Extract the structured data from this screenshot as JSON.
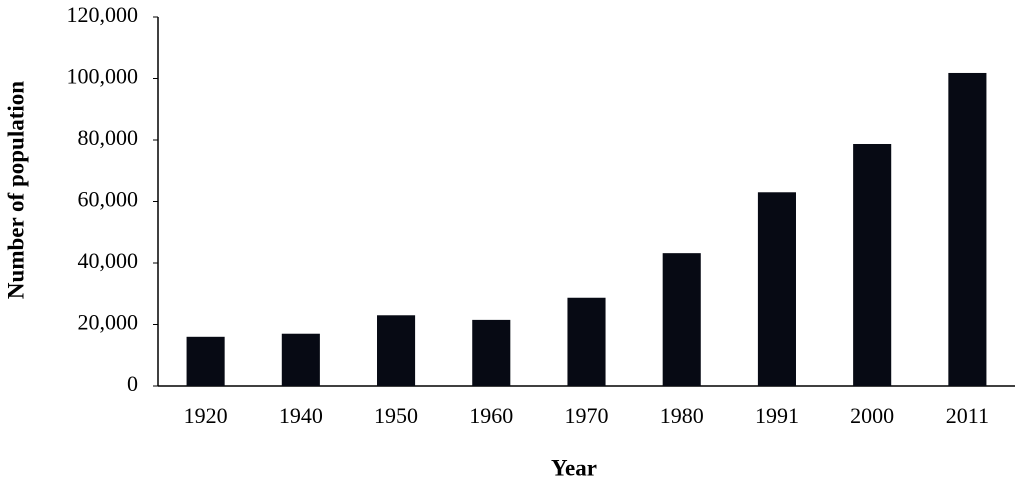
{
  "chart_data": {
    "type": "bar",
    "x_label": "Year",
    "y_label": "Number of population",
    "categories": [
      "1920",
      "1940",
      "1950",
      "1960",
      "1970",
      "1980",
      "1991",
      "2000",
      "2011"
    ],
    "values": [
      16000,
      17000,
      23000,
      21500,
      28700,
      43200,
      63000,
      78700,
      101800
    ],
    "color": "#070a14",
    "ylim": [
      0,
      120000
    ],
    "yticks": [
      0,
      {
        "value": 20000,
        "label": "20,000"
      },
      {
        "value": 40000,
        "label": "40,000"
      },
      {
        "value": 60000,
        "label": "60,000"
      },
      {
        "value": 80000,
        "label": "80,000"
      },
      {
        "value": 100000,
        "label": "100,000"
      },
      {
        "value": 120000,
        "label": "120,000"
      }
    ],
    "grid": false
  }
}
